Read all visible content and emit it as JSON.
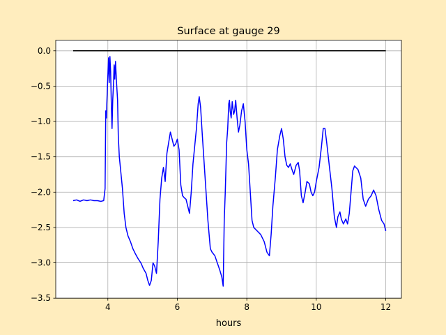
{
  "chart_data": {
    "type": "line",
    "title": "Surface at gauge 29",
    "xlabel": "hours",
    "ylabel": "",
    "xlim": [
      2.5,
      12.45
    ],
    "ylim": [
      -3.5,
      0.15
    ],
    "xticks": [
      4,
      6,
      8,
      10,
      12
    ],
    "yticks": [
      0.0,
      -0.5,
      -1.0,
      -1.5,
      -2.0,
      -2.5,
      -3.0,
      -3.5
    ],
    "xtick_labels": [
      "4",
      "6",
      "8",
      "10",
      "12"
    ],
    "ytick_labels": [
      "0.0",
      "−0.5",
      "−1.0",
      "−1.5",
      "−2.0",
      "−2.5",
      "−3.0",
      "−3.5"
    ],
    "grid": true,
    "legend": "none",
    "series": [
      {
        "color": "#0000ff",
        "points": [
          [
            3.0,
            -2.12
          ],
          [
            3.1,
            -2.11
          ],
          [
            3.2,
            -2.13
          ],
          [
            3.3,
            -2.11
          ],
          [
            3.4,
            -2.12
          ],
          [
            3.5,
            -2.11
          ],
          [
            3.6,
            -2.12
          ],
          [
            3.7,
            -2.12
          ],
          [
            3.8,
            -2.13
          ],
          [
            3.88,
            -2.12
          ],
          [
            3.92,
            -1.95
          ],
          [
            3.94,
            -0.85
          ],
          [
            3.96,
            -0.95
          ],
          [
            3.97,
            -0.75
          ],
          [
            4.0,
            -0.35
          ],
          [
            4.02,
            -0.1
          ],
          [
            4.04,
            -0.45
          ],
          [
            4.06,
            -0.08
          ],
          [
            4.08,
            -0.3
          ],
          [
            4.1,
            -0.75
          ],
          [
            4.12,
            -1.1
          ],
          [
            4.14,
            -0.7
          ],
          [
            4.16,
            -0.5
          ],
          [
            4.18,
            -0.2
          ],
          [
            4.2,
            -0.4
          ],
          [
            4.22,
            -0.15
          ],
          [
            4.25,
            -0.45
          ],
          [
            4.28,
            -0.7
          ],
          [
            4.3,
            -1.2
          ],
          [
            4.33,
            -1.5
          ],
          [
            4.37,
            -1.7
          ],
          [
            4.42,
            -1.95
          ],
          [
            4.47,
            -2.3
          ],
          [
            4.52,
            -2.5
          ],
          [
            4.58,
            -2.62
          ],
          [
            4.65,
            -2.7
          ],
          [
            4.72,
            -2.8
          ],
          [
            4.8,
            -2.88
          ],
          [
            4.88,
            -2.95
          ],
          [
            4.95,
            -3.0
          ],
          [
            5.02,
            -3.08
          ],
          [
            5.1,
            -3.15
          ],
          [
            5.15,
            -3.25
          ],
          [
            5.2,
            -3.32
          ],
          [
            5.25,
            -3.25
          ],
          [
            5.3,
            -3.0
          ],
          [
            5.35,
            -3.05
          ],
          [
            5.4,
            -3.15
          ],
          [
            5.45,
            -2.7
          ],
          [
            5.5,
            -2.1
          ],
          [
            5.55,
            -1.8
          ],
          [
            5.6,
            -1.65
          ],
          [
            5.65,
            -1.85
          ],
          [
            5.7,
            -1.45
          ],
          [
            5.75,
            -1.3
          ],
          [
            5.8,
            -1.15
          ],
          [
            5.85,
            -1.25
          ],
          [
            5.9,
            -1.35
          ],
          [
            5.95,
            -1.32
          ],
          [
            6.0,
            -1.25
          ],
          [
            6.05,
            -1.4
          ],
          [
            6.1,
            -1.9
          ],
          [
            6.15,
            -2.05
          ],
          [
            6.2,
            -2.08
          ],
          [
            6.25,
            -2.1
          ],
          [
            6.3,
            -2.2
          ],
          [
            6.35,
            -2.3
          ],
          [
            6.4,
            -2.0
          ],
          [
            6.45,
            -1.6
          ],
          [
            6.5,
            -1.35
          ],
          [
            6.55,
            -1.1
          ],
          [
            6.6,
            -0.75
          ],
          [
            6.63,
            -0.65
          ],
          [
            6.67,
            -0.8
          ],
          [
            6.72,
            -1.2
          ],
          [
            6.8,
            -1.8
          ],
          [
            6.88,
            -2.4
          ],
          [
            6.95,
            -2.8
          ],
          [
            7.0,
            -2.85
          ],
          [
            7.08,
            -2.9
          ],
          [
            7.15,
            -3.0
          ],
          [
            7.22,
            -3.1
          ],
          [
            7.28,
            -3.2
          ],
          [
            7.32,
            -3.33
          ],
          [
            7.35,
            -2.4
          ],
          [
            7.38,
            -2.0
          ],
          [
            7.42,
            -1.3
          ],
          [
            7.45,
            -1.1
          ],
          [
            7.48,
            -0.75
          ],
          [
            7.5,
            -0.7
          ],
          [
            7.52,
            -0.85
          ],
          [
            7.55,
            -0.95
          ],
          [
            7.58,
            -0.72
          ],
          [
            7.62,
            -0.9
          ],
          [
            7.65,
            -0.85
          ],
          [
            7.68,
            -0.7
          ],
          [
            7.72,
            -0.95
          ],
          [
            7.76,
            -1.15
          ],
          [
            7.8,
            -1.05
          ],
          [
            7.85,
            -0.85
          ],
          [
            7.9,
            -0.75
          ],
          [
            7.95,
            -1.0
          ],
          [
            8.0,
            -1.4
          ],
          [
            8.05,
            -1.6
          ],
          [
            8.1,
            -2.0
          ],
          [
            8.15,
            -2.4
          ],
          [
            8.2,
            -2.5
          ],
          [
            8.3,
            -2.55
          ],
          [
            8.4,
            -2.6
          ],
          [
            8.5,
            -2.7
          ],
          [
            8.58,
            -2.85
          ],
          [
            8.65,
            -2.9
          ],
          [
            8.7,
            -2.6
          ],
          [
            8.75,
            -2.2
          ],
          [
            8.82,
            -1.8
          ],
          [
            8.88,
            -1.4
          ],
          [
            8.95,
            -1.2
          ],
          [
            9.0,
            -1.1
          ],
          [
            9.05,
            -1.25
          ],
          [
            9.1,
            -1.5
          ],
          [
            9.15,
            -1.62
          ],
          [
            9.2,
            -1.65
          ],
          [
            9.25,
            -1.6
          ],
          [
            9.3,
            -1.68
          ],
          [
            9.35,
            -1.75
          ],
          [
            9.42,
            -1.62
          ],
          [
            9.48,
            -1.58
          ],
          [
            9.52,
            -1.7
          ],
          [
            9.57,
            -2.05
          ],
          [
            9.62,
            -2.15
          ],
          [
            9.68,
            -2.0
          ],
          [
            9.73,
            -1.85
          ],
          [
            9.8,
            -1.88
          ],
          [
            9.85,
            -2.0
          ],
          [
            9.9,
            -2.05
          ],
          [
            9.95,
            -2.0
          ],
          [
            10.0,
            -1.85
          ],
          [
            10.08,
            -1.65
          ],
          [
            10.15,
            -1.35
          ],
          [
            10.2,
            -1.1
          ],
          [
            10.25,
            -1.1
          ],
          [
            10.3,
            -1.3
          ],
          [
            10.38,
            -1.65
          ],
          [
            10.45,
            -1.95
          ],
          [
            10.52,
            -2.35
          ],
          [
            10.58,
            -2.5
          ],
          [
            10.62,
            -2.35
          ],
          [
            10.68,
            -2.28
          ],
          [
            10.72,
            -2.38
          ],
          [
            10.78,
            -2.45
          ],
          [
            10.85,
            -2.38
          ],
          [
            10.9,
            -2.45
          ],
          [
            10.95,
            -2.3
          ],
          [
            11.0,
            -2.0
          ],
          [
            11.05,
            -1.7
          ],
          [
            11.1,
            -1.63
          ],
          [
            11.2,
            -1.68
          ],
          [
            11.28,
            -1.8
          ],
          [
            11.35,
            -2.1
          ],
          [
            11.42,
            -2.2
          ],
          [
            11.5,
            -2.1
          ],
          [
            11.58,
            -2.05
          ],
          [
            11.65,
            -1.97
          ],
          [
            11.72,
            -2.05
          ],
          [
            11.8,
            -2.25
          ],
          [
            11.88,
            -2.4
          ],
          [
            11.95,
            -2.45
          ],
          [
            12.0,
            -2.55
          ]
        ]
      },
      {
        "color": "#000000",
        "points": [
          [
            3.0,
            0.0
          ],
          [
            12.0,
            0.0
          ]
        ]
      }
    ]
  }
}
